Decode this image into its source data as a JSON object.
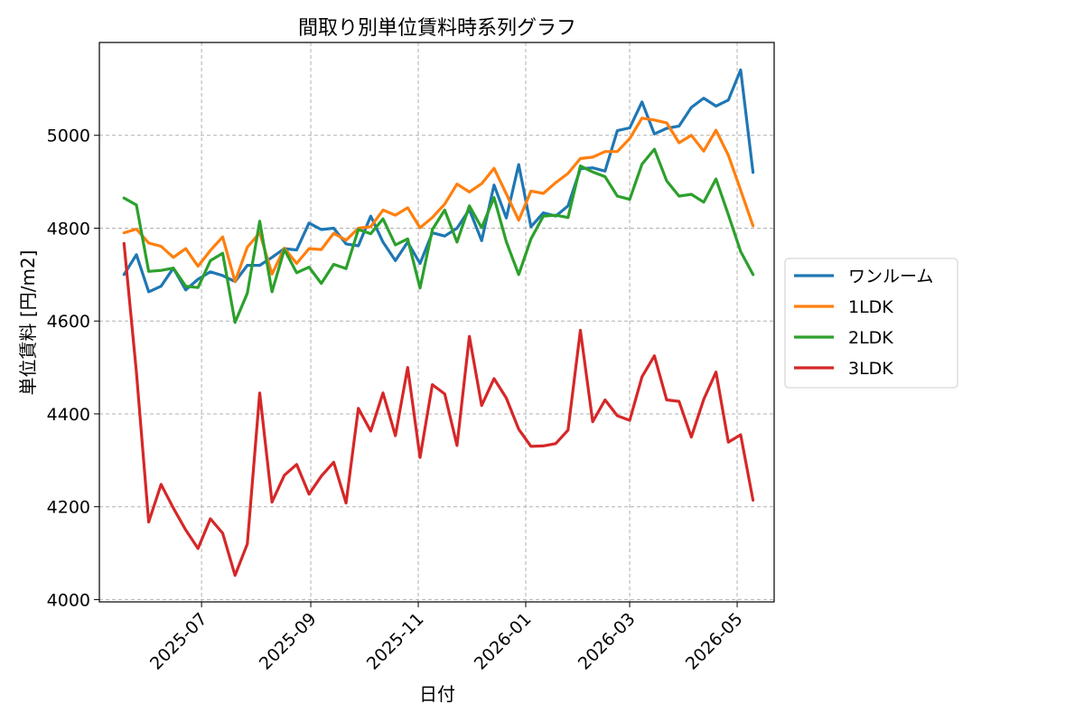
{
  "chart_data": {
    "type": "line",
    "title": "間取り別単位賃料時系列グラフ",
    "xlabel": "日付",
    "ylabel": "単位賃料 [円/m2]",
    "grid": true,
    "legend_position": "right-outside",
    "xlim": [
      "2025-05-04",
      "2026-05-22"
    ],
    "ylim": [
      3995,
      5200
    ],
    "y_ticks": [
      4000,
      4200,
      4400,
      4600,
      4800,
      5000
    ],
    "x_ticks": [
      "2025-07-01",
      "2025-09-01",
      "2025-11-01",
      "2026-01-01",
      "2026-03-01",
      "2026-05-01"
    ],
    "x_tick_labels": [
      "2025-07",
      "2025-09",
      "2025-11",
      "2026-01",
      "2026-03",
      "2026-05"
    ],
    "x": [
      "2025-05-18",
      "2025-05-25",
      "2025-06-01",
      "2025-06-08",
      "2025-06-15",
      "2025-06-22",
      "2025-06-29",
      "2025-07-06",
      "2025-07-13",
      "2025-07-20",
      "2025-07-27",
      "2025-08-03",
      "2025-08-10",
      "2025-08-17",
      "2025-08-24",
      "2025-08-31",
      "2025-09-07",
      "2025-09-14",
      "2025-09-21",
      "2025-09-28",
      "2025-10-05",
      "2025-10-12",
      "2025-10-19",
      "2025-10-26",
      "2025-11-02",
      "2025-11-09",
      "2025-11-16",
      "2025-11-23",
      "2025-11-30",
      "2025-12-07",
      "2025-12-14",
      "2025-12-21",
      "2025-12-28",
      "2026-01-04",
      "2026-01-11",
      "2026-01-18",
      "2026-01-25",
      "2026-02-01",
      "2026-02-08",
      "2026-02-15",
      "2026-02-22",
      "2026-03-01",
      "2026-03-08",
      "2026-03-15",
      "2026-03-22",
      "2026-03-29",
      "2026-04-05",
      "2026-04-12",
      "2026-04-19",
      "2026-04-26",
      "2026-05-03",
      "2026-05-10"
    ],
    "series": [
      {
        "name": "ワンルーム",
        "color": "#1f77b4",
        "values": [
          4700,
          4743,
          4663,
          4675,
          4714,
          4667,
          4690,
          4706,
          4698,
          4685,
          4720,
          4720,
          4737,
          4756,
          4753,
          4811,
          4797,
          4800,
          4766,
          4762,
          4826,
          4770,
          4730,
          4770,
          4724,
          4790,
          4783,
          4800,
          4840,
          4773,
          4893,
          4822,
          4937,
          4803,
          4833,
          4826,
          4848,
          4928,
          4930,
          4923,
          5010,
          5016,
          5072,
          5003,
          5015,
          5020,
          5060,
          5080,
          5063,
          5076,
          5141,
          4920
        ]
      },
      {
        "name": "1LDK",
        "color": "#ff7f0e",
        "values": [
          4790,
          4798,
          4768,
          4761,
          4737,
          4756,
          4718,
          4752,
          4781,
          4685,
          4759,
          4790,
          4701,
          4757,
          4724,
          4756,
          4754,
          4789,
          4774,
          4800,
          4803,
          4839,
          4828,
          4844,
          4801,
          4823,
          4852,
          4895,
          4878,
          4896,
          4929,
          4874,
          4817,
          4880,
          4875,
          4898,
          4918,
          4950,
          4953,
          4965,
          4965,
          4993,
          5037,
          5033,
          5027,
          4984,
          5000,
          4966,
          5011,
          4957,
          4882,
          4805
        ]
      },
      {
        "name": "2LDK",
        "color": "#2ca02c",
        "values": [
          4865,
          4850,
          4707,
          4709,
          4714,
          4675,
          4672,
          4730,
          4746,
          4597,
          4660,
          4815,
          4663,
          4754,
          4704,
          4716,
          4681,
          4722,
          4713,
          4797,
          4788,
          4820,
          4764,
          4777,
          4671,
          4797,
          4839,
          4770,
          4848,
          4801,
          4866,
          4771,
          4700,
          4777,
          4826,
          4828,
          4823,
          4934,
          4921,
          4911,
          4869,
          4862,
          4938,
          4970,
          4902,
          4869,
          4873,
          4856,
          4906,
          4829,
          4750,
          4700
        ]
      },
      {
        "name": "3LDK",
        "color": "#d62728",
        "values": [
          4767,
          4490,
          4167,
          4248,
          4197,
          4150,
          4110,
          4174,
          4143,
          4052,
          4120,
          4445,
          4210,
          4268,
          4291,
          4227,
          4266,
          4296,
          4208,
          4412,
          4363,
          4445,
          4353,
          4500,
          4306,
          4463,
          4443,
          4332,
          4567,
          4418,
          4476,
          4434,
          4367,
          4330,
          4331,
          4336,
          4365,
          4580,
          4383,
          4430,
          4396,
          4386,
          4480,
          4525,
          4430,
          4427,
          4350,
          4431,
          4490,
          4339,
          4355,
          4214
        ]
      }
    ]
  }
}
